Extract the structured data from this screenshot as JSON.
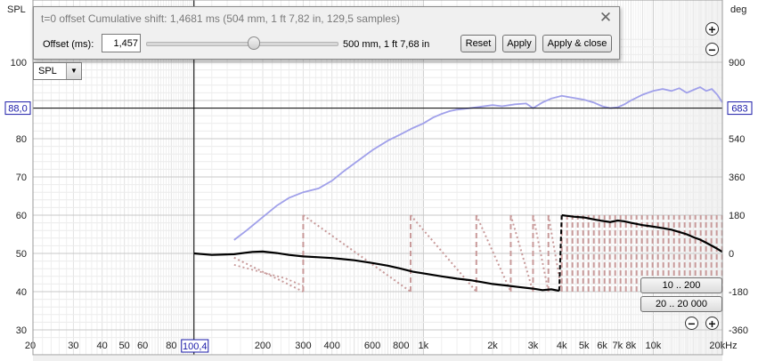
{
  "dialog": {
    "title": "t=0 offset  Cumulative shift: 1,4681 ms (504 mm, 1 ft 7,82 in, 129,5 samples)",
    "offset_label": "Offset (ms):",
    "offset_value": "1,457",
    "distance_text": "500 mm, 1 ft 7,68 in",
    "reset_label": "Reset",
    "apply_label": "Apply",
    "apply_close_label": "Apply & close",
    "close_glyph": "✕",
    "slider_position": 0.56
  },
  "selector": {
    "value": "SPL",
    "arrow": "▼"
  },
  "zoom": {
    "plus": "+",
    "minus": "−"
  },
  "range_buttons": {
    "range1": "10 .. 200",
    "range2": "20 .. 20 000"
  },
  "chart_data": {
    "type": "line",
    "left_axis_label": "SPL",
    "right_axis_label": "deg",
    "left_ticks": [
      "100",
      "90",
      "80",
      "70",
      "60",
      "50",
      "40",
      "30"
    ],
    "right_ticks": [
      "900",
      "720",
      "540",
      "360",
      "180",
      "0",
      "-180",
      "-360"
    ],
    "x_ticks": [
      "20",
      "30",
      "40",
      "50",
      "60",
      "80",
      "200",
      "300",
      "400",
      "600",
      "800",
      "1k",
      "2k",
      "3k",
      "4k",
      "5k",
      "6k",
      "7k",
      "8k",
      "10k",
      "20kHz"
    ],
    "cursor": {
      "x_label": "100,4",
      "y_left_label": "88,0",
      "y_right_label": "683"
    },
    "ylim_spl": [
      30,
      100
    ],
    "ylim_deg": [
      -360,
      900
    ],
    "xlim": [
      20,
      20000
    ],
    "x_scale": "log",
    "colors": {
      "spl": "#a0a0ea",
      "phase_black": "#000000",
      "phase_dots": "#c89a9a",
      "grid": "#e2e2e2"
    },
    "series": [
      {
        "key": "spl_light",
        "x": [
          150,
          170,
          200,
          230,
          260,
          300,
          350,
          400,
          450,
          500,
          600,
          700,
          800,
          900,
          1000,
          1100,
          1200,
          1300,
          1400,
          1500,
          1700,
          2000,
          2200,
          2500,
          2800,
          3000,
          3300,
          3600,
          4000,
          4400,
          5000,
          5500,
          6000,
          6500,
          7000,
          7500,
          8000,
          9000,
          10000,
          11000,
          12000,
          13000,
          14000,
          15000,
          16000,
          17000,
          18000,
          19000,
          20000
        ],
        "y": [
          53.5,
          56.0,
          59.5,
          62.5,
          64.5,
          66.0,
          67.0,
          69.0,
          71.5,
          73.5,
          77.0,
          79.5,
          81.2,
          82.8,
          84.0,
          85.5,
          86.5,
          87.2,
          87.6,
          87.8,
          88.2,
          88.8,
          88.5,
          89.0,
          89.2,
          88.0,
          89.5,
          90.5,
          91.2,
          90.8,
          90.2,
          89.5,
          88.5,
          88.0,
          88.2,
          89.0,
          90.0,
          91.5,
          92.5,
          93.0,
          92.5,
          93.2,
          92.0,
          92.8,
          93.5,
          92.5,
          93.0,
          91.5,
          89.5
        ]
      },
      {
        "key": "spl_light_low",
        "x": [
          150,
          200,
          250,
          300
        ],
        "y": [
          47.0,
          45.0,
          43.5,
          41.5
        ]
      },
      {
        "key": "phase_black",
        "x": [
          100.4,
          120,
          150,
          180,
          200,
          230,
          260,
          300,
          350,
          400,
          500,
          600,
          700,
          800,
          900,
          1000,
          1200,
          1400,
          1600,
          1800,
          2000,
          2300,
          2600,
          3000,
          3300,
          3600,
          3900
        ],
        "y": [
          50.0,
          49.6,
          49.8,
          50.4,
          50.5,
          50.1,
          49.6,
          49.2,
          49.0,
          48.8,
          48.2,
          47.5,
          46.8,
          46.0,
          45.2,
          44.8,
          44.0,
          43.4,
          43.0,
          42.5,
          42.0,
          41.6,
          41.2,
          40.8,
          40.4,
          40.6,
          40.2
        ]
      },
      {
        "key": "phase_black_high",
        "x": [
          4000,
          4500,
          5000,
          5500,
          6000,
          6500,
          7000,
          7500,
          8000,
          9000,
          10000,
          11000,
          12000,
          13000,
          14000,
          15000,
          16000,
          17000,
          18000,
          19000,
          20000
        ],
        "y": [
          60.0,
          59.6,
          59.4,
          58.9,
          58.5,
          58.2,
          58.6,
          58.4,
          58.0,
          57.4,
          57.0,
          56.6,
          56.2,
          55.6,
          55.0,
          54.2,
          53.6,
          52.8,
          52.0,
          51.2,
          50.4
        ]
      }
    ],
    "phase_wraps_hz": [
      300,
      880,
      1700,
      2400,
      3000,
      3500,
      4000
    ]
  }
}
